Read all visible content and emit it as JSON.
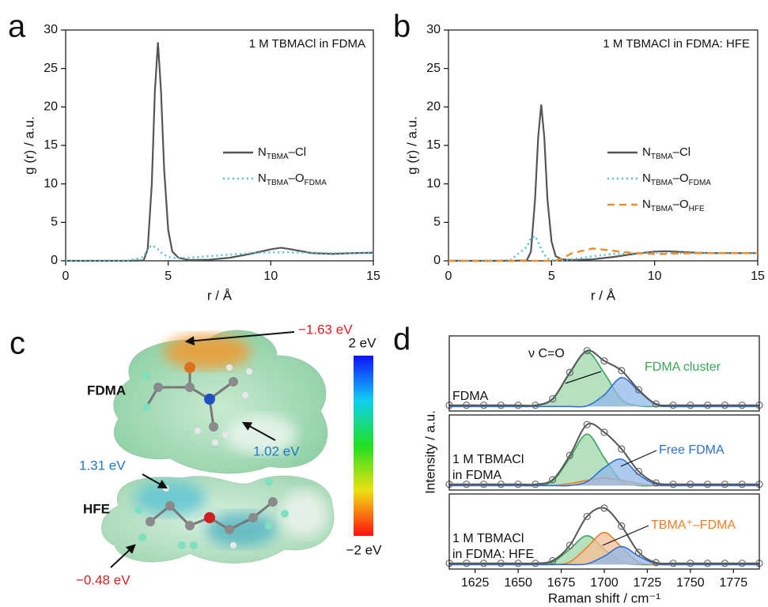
{
  "chart_data": [
    {
      "type": "line",
      "panel": "a",
      "annotation": "1 M TBMACl in FDMA",
      "xlabel": "r / Å",
      "ylabel": "g (r) / a.u.",
      "xlim": [
        0,
        15
      ],
      "xticks": [
        0,
        5,
        10,
        15
      ],
      "ylim": [
        0,
        30
      ],
      "yticks": [
        0,
        5,
        10,
        15,
        20,
        25,
        30
      ],
      "legend": "right",
      "x": [
        0,
        1,
        2,
        3,
        3.8,
        4.0,
        4.2,
        4.35,
        4.5,
        4.65,
        4.8,
        5.0,
        5.2,
        5.5,
        6,
        7,
        8,
        9,
        10,
        10.5,
        11,
        12,
        13,
        14,
        15
      ],
      "series": [
        {
          "name": "NTBMA–Cl",
          "color": "#555555",
          "dash": "solid",
          "values": [
            0,
            0,
            0,
            0,
            0.05,
            1.5,
            10,
            22,
            28.4,
            22,
            12,
            4,
            1.2,
            0.4,
            0.1,
            0.15,
            0.4,
            0.9,
            1.5,
            1.7,
            1.5,
            1.0,
            0.9,
            1.0,
            1.05
          ]
        },
        {
          "name": "NTBMA–OFDMA",
          "color": "#4fc3c8",
          "dash": "dotted",
          "values": [
            0,
            0,
            0,
            0,
            0.5,
            1.6,
            2.0,
            1.8,
            1.5,
            1.1,
            0.8,
            0.5,
            0.4,
            0.35,
            0.4,
            0.6,
            0.8,
            1.0,
            1.1,
            1.1,
            1.1,
            1.05,
            1.0,
            1.0,
            1.0
          ]
        }
      ]
    },
    {
      "type": "line",
      "panel": "b",
      "annotation": "1 M TBMACl in FDMA: HFE",
      "xlabel": "r / Å",
      "ylabel": "g (r) / a.u.",
      "xlim": [
        0,
        15
      ],
      "xticks": [
        0,
        5,
        10,
        15
      ],
      "ylim": [
        0,
        30
      ],
      "yticks": [
        0,
        5,
        10,
        15,
        20,
        25,
        30
      ],
      "legend": "right",
      "x": [
        0,
        1,
        2,
        3,
        3.8,
        4.0,
        4.2,
        4.35,
        4.5,
        4.65,
        4.8,
        5.0,
        5.2,
        5.5,
        6,
        7,
        8,
        9,
        10,
        10.5,
        11,
        12,
        13,
        14,
        15
      ],
      "series": [
        {
          "name": "NTBMA–Cl",
          "color": "#555555",
          "dash": "solid",
          "values": [
            0,
            0,
            0,
            0,
            0.05,
            1.2,
            8,
            16,
            20.3,
            16,
            8,
            2.5,
            0.6,
            0.2,
            0.1,
            0.2,
            0.5,
            0.9,
            1.2,
            1.25,
            1.2,
            1.05,
            1.0,
            1.0,
            1.0
          ]
        },
        {
          "name": "NTBMA–OFDMA",
          "color": "#4fc3c8",
          "dash": "dotted",
          "values": [
            0,
            0,
            0,
            0.1,
            1.8,
            3.0,
            3.2,
            2.5,
            1.5,
            0.8,
            0.3,
            0.1,
            0.05,
            0.05,
            0.2,
            0.6,
            0.9,
            1.0,
            1.05,
            1.05,
            1.0,
            1.0,
            1.0,
            1.0,
            1.0
          ]
        },
        {
          "name": "NTBMA–OHFE",
          "color": "#f08a2a",
          "dash": "dashed",
          "values": [
            0,
            0,
            0,
            0,
            0,
            0,
            0,
            0,
            0,
            0,
            0,
            0,
            0.05,
            0.3,
            1.0,
            1.6,
            1.3,
            1.0,
            0.9,
            0.9,
            0.95,
            1.0,
            1.0,
            1.0,
            1.0
          ]
        }
      ]
    },
    {
      "type": "area",
      "panel": "d",
      "xlabel": "Raman shift / cm⁻¹",
      "ylabel": "Intensity / a.u.",
      "xlim": [
        1610,
        1790
      ],
      "xticks": [
        1625,
        1650,
        1675,
        1700,
        1725,
        1750,
        1775
      ],
      "ylim": [
        -0.07,
        1.1
      ],
      "x": [
        1610,
        1620,
        1630,
        1640,
        1650,
        1660,
        1670,
        1680,
        1690,
        1700,
        1710,
        1720,
        1730,
        1740,
        1750,
        1760,
        1770,
        1780,
        1790
      ],
      "panels": [
        {
          "label": [
            "FDMA"
          ],
          "annotations": [
            {
              "text": "ν C=O",
              "color": "#111111"
            },
            {
              "text": "FDMA cluster",
              "color": "#3aa55a"
            }
          ],
          "series": [
            {
              "kind": "fit",
              "color": "#3aa55a",
              "fill": "#9ed6a9",
              "values": [
                0,
                0,
                0,
                0,
                0,
                0.01,
                0.11,
                0.52,
                0.85,
                0.52,
                0.11,
                0.01,
                0,
                0,
                0,
                0,
                0,
                0,
                0
              ]
            },
            {
              "kind": "fit",
              "color": "#2f6fd0",
              "fill": "#93b8ea",
              "values": [
                0,
                0,
                0,
                0,
                0,
                0,
                0,
                0,
                0.01,
                0.18,
                0.45,
                0.24,
                0.03,
                0,
                0,
                0,
                0,
                0,
                0
              ]
            },
            {
              "kind": "measured",
              "color": "#666666",
              "values": [
                0.02,
                0.02,
                0.02,
                0.02,
                0.02,
                0.02,
                0.12,
                0.53,
                0.87,
                0.71,
                0.56,
                0.26,
                0.04,
                0.02,
                0.02,
                0.02,
                0.02,
                0.02,
                0.02
              ]
            }
          ]
        },
        {
          "label": [
            "1 M TBMACl",
            "in FDMA"
          ],
          "annotations": [
            {
              "text": "Free FDMA",
              "color": "#2f6fd0"
            }
          ],
          "series": [
            {
              "kind": "fit",
              "color": "#3aa55a",
              "fill": "#9ed6a9",
              "values": [
                0,
                0,
                0,
                0,
                0,
                0,
                0.07,
                0.43,
                0.8,
                0.43,
                0.07,
                0,
                0,
                0,
                0,
                0,
                0,
                0,
                0
              ]
            },
            {
              "kind": "fit",
              "color": "#ee7d22",
              "fill": "#f5bf94",
              "values": [
                0,
                0,
                0,
                0,
                0,
                0,
                0,
                0.03,
                0.08,
                0.12,
                0.08,
                0.03,
                0,
                0,
                0,
                0,
                0,
                0,
                0
              ]
            },
            {
              "kind": "fit",
              "color": "#2f6fd0",
              "fill": "#93b8ea",
              "values": [
                0,
                0,
                0,
                0,
                0,
                0,
                0,
                0,
                0.06,
                0.28,
                0.41,
                0.17,
                0.02,
                0,
                0,
                0,
                0,
                0,
                0
              ]
            },
            {
              "kind": "measured",
              "color": "#666666",
              "values": [
                0.02,
                0.02,
                0.02,
                0.02,
                0.02,
                0.02,
                0.09,
                0.47,
                0.95,
                0.83,
                0.57,
                0.22,
                0.04,
                0.02,
                0.02,
                0.02,
                0.02,
                0.02,
                0.02
              ]
            }
          ]
        },
        {
          "label": [
            "1 M TBMACl",
            "in FDMA: HFE"
          ],
          "annotations": [
            {
              "text": "TBMA⁺–FDMA",
              "color": "#ee7d22"
            }
          ],
          "series": [
            {
              "kind": "fit",
              "color": "#3aa55a",
              "fill": "#9ed6a9",
              "values": [
                0,
                0,
                0,
                0,
                0,
                0,
                0.04,
                0.24,
                0.45,
                0.24,
                0.04,
                0,
                0,
                0,
                0,
                0,
                0,
                0,
                0
              ]
            },
            {
              "kind": "fit",
              "color": "#ee7d22",
              "fill": "#f5bf94",
              "values": [
                0,
                0,
                0,
                0,
                0,
                0,
                0,
                0.04,
                0.27,
                0.5,
                0.27,
                0.04,
                0,
                0,
                0,
                0,
                0,
                0,
                0
              ]
            },
            {
              "kind": "fit",
              "color": "#2f6fd0",
              "fill": "#93b8ea",
              "values": [
                0,
                0,
                0,
                0,
                0,
                0,
                0,
                0,
                0.01,
                0.13,
                0.28,
                0.13,
                0.01,
                0,
                0,
                0,
                0,
                0,
                0
              ]
            },
            {
              "kind": "measured",
              "color": "#666666",
              "values": [
                0.02,
                0.02,
                0.02,
                0.02,
                0.02,
                0.02,
                0.06,
                0.3,
                0.75,
                0.88,
                0.6,
                0.19,
                0.03,
                0.02,
                0.02,
                0.02,
                0.02,
                0.02,
                0.02
              ]
            }
          ]
        }
      ]
    }
  ],
  "panel_c": {
    "panel": "c",
    "molecules": [
      {
        "name": "FDMA",
        "annotations": [
          "−1.63 eV",
          "1.02 eV"
        ]
      },
      {
        "name": "HFE",
        "annotations": [
          "1.31 eV",
          "−0.48 eV"
        ]
      }
    ],
    "colorbar": {
      "top": "2 eV",
      "bottom": "−2 eV"
    }
  }
}
